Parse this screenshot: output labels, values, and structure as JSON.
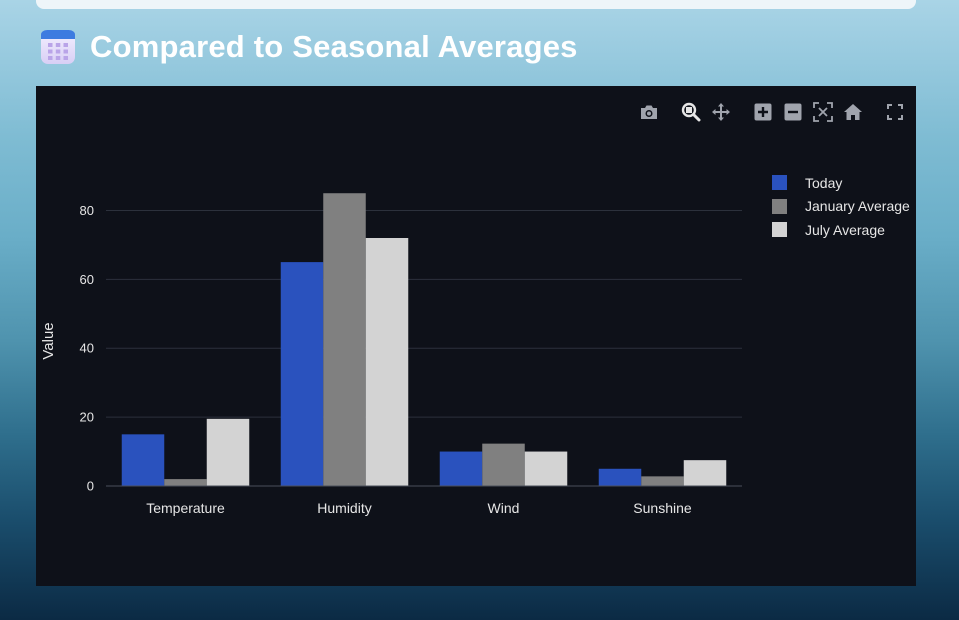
{
  "header": {
    "icon": "calendar-icon",
    "title": "Compared to Seasonal Averages"
  },
  "modebar": {
    "buttons": [
      {
        "name": "camera-icon",
        "title": "Download plot as a png"
      },
      {
        "name": "zoom-icon",
        "title": "Zoom"
      },
      {
        "name": "pan-icon",
        "title": "Pan"
      },
      {
        "name": "zoom-in-icon",
        "title": "Zoom in"
      },
      {
        "name": "zoom-out-icon",
        "title": "Zoom out"
      },
      {
        "name": "autoscale-icon",
        "title": "Autoscale"
      },
      {
        "name": "home-icon",
        "title": "Reset axes"
      },
      {
        "name": "fullscreen-icon",
        "title": "Fullscreen"
      }
    ],
    "icon_color": "#a0a4ad",
    "active_color": "#e6e6e6"
  },
  "chart_data": {
    "type": "bar",
    "title": "",
    "xlabel": "",
    "ylabel": "Value",
    "categories": [
      "Temperature",
      "Humidity",
      "Wind",
      "Sunshine"
    ],
    "series": [
      {
        "name": "Today",
        "color": "#2a52be",
        "values": [
          15,
          65,
          10,
          5
        ]
      },
      {
        "name": "January Average",
        "color": "#808080",
        "values": [
          2,
          85,
          12.3,
          2.8
        ]
      },
      {
        "name": "July Average",
        "color": "#d3d3d3",
        "values": [
          19.5,
          72,
          10,
          7.5
        ]
      }
    ],
    "ylim": [
      0,
      90
    ],
    "yticks": [
      0,
      20,
      40,
      60,
      80
    ],
    "grid": true,
    "legend_position": "top-right"
  }
}
